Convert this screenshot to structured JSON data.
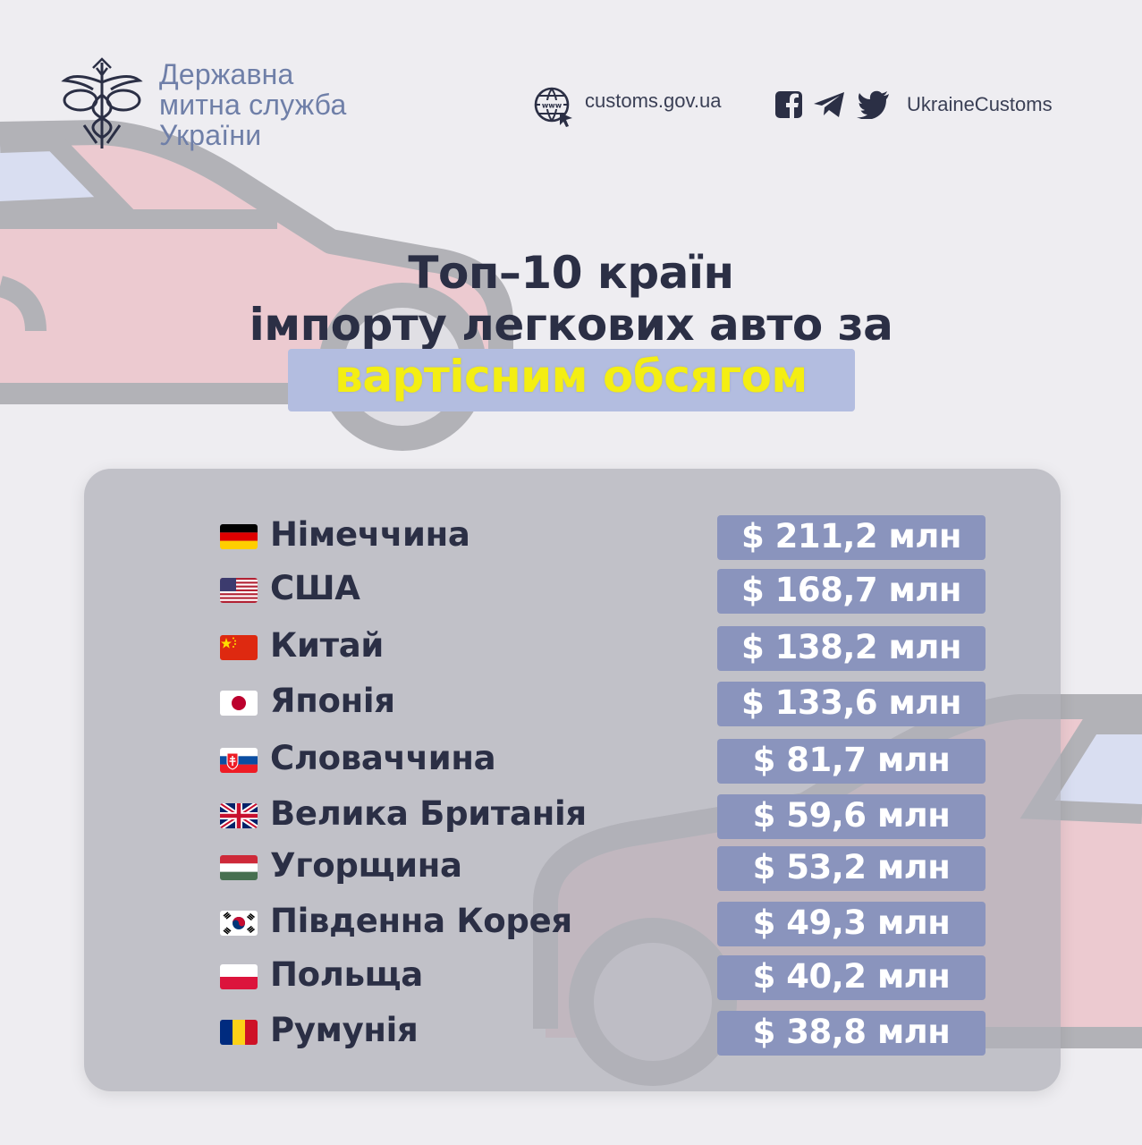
{
  "header": {
    "org_name": [
      "Державна",
      "митна служба",
      "України"
    ],
    "website": "customs.gov.ua",
    "social_handle": "UkraineCustoms",
    "social_icons": [
      "facebook-icon",
      "telegram-icon",
      "twitter-icon"
    ]
  },
  "title": {
    "line1": "Топ–10 країн",
    "line2": "імпорту легкових авто за",
    "line3": "вартісним обсягом"
  },
  "colors": {
    "background": "#eeedf1",
    "title_text": "#2b2f45",
    "highlight_text": "#f4ee13",
    "highlight_box": "#b3bde0",
    "value_box": "#8a94bd",
    "header_accent": "#6f7fa8"
  },
  "ranking": [
    {
      "flag": "germany-flag",
      "country": "Німеччина",
      "value": "$ 211,2 млн"
    },
    {
      "flag": "usa-flag",
      "country": "США",
      "value": "$ 168,7 млн"
    },
    {
      "flag": "china-flag",
      "country": "Китай",
      "value": "$ 138,2 млн"
    },
    {
      "flag": "japan-flag",
      "country": "Японія",
      "value": "$ 133,6 млн"
    },
    {
      "flag": "slovakia-flag",
      "country": "Словаччина",
      "value": "$ 81,7 млн"
    },
    {
      "flag": "uk-flag",
      "country": "Велика Британія",
      "value": "$ 59,6 млн"
    },
    {
      "flag": "hungary-flag",
      "country": "Угорщина",
      "value": "$ 53,2 млн"
    },
    {
      "flag": "south-korea-flag",
      "country": "Південна Корея",
      "value": "$ 49,3 млн"
    },
    {
      "flag": "poland-flag",
      "country": "Польща",
      "value": "$ 40,2 млн"
    },
    {
      "flag": "romania-flag",
      "country": "Румунія",
      "value": "$ 38,8 млн"
    }
  ]
}
